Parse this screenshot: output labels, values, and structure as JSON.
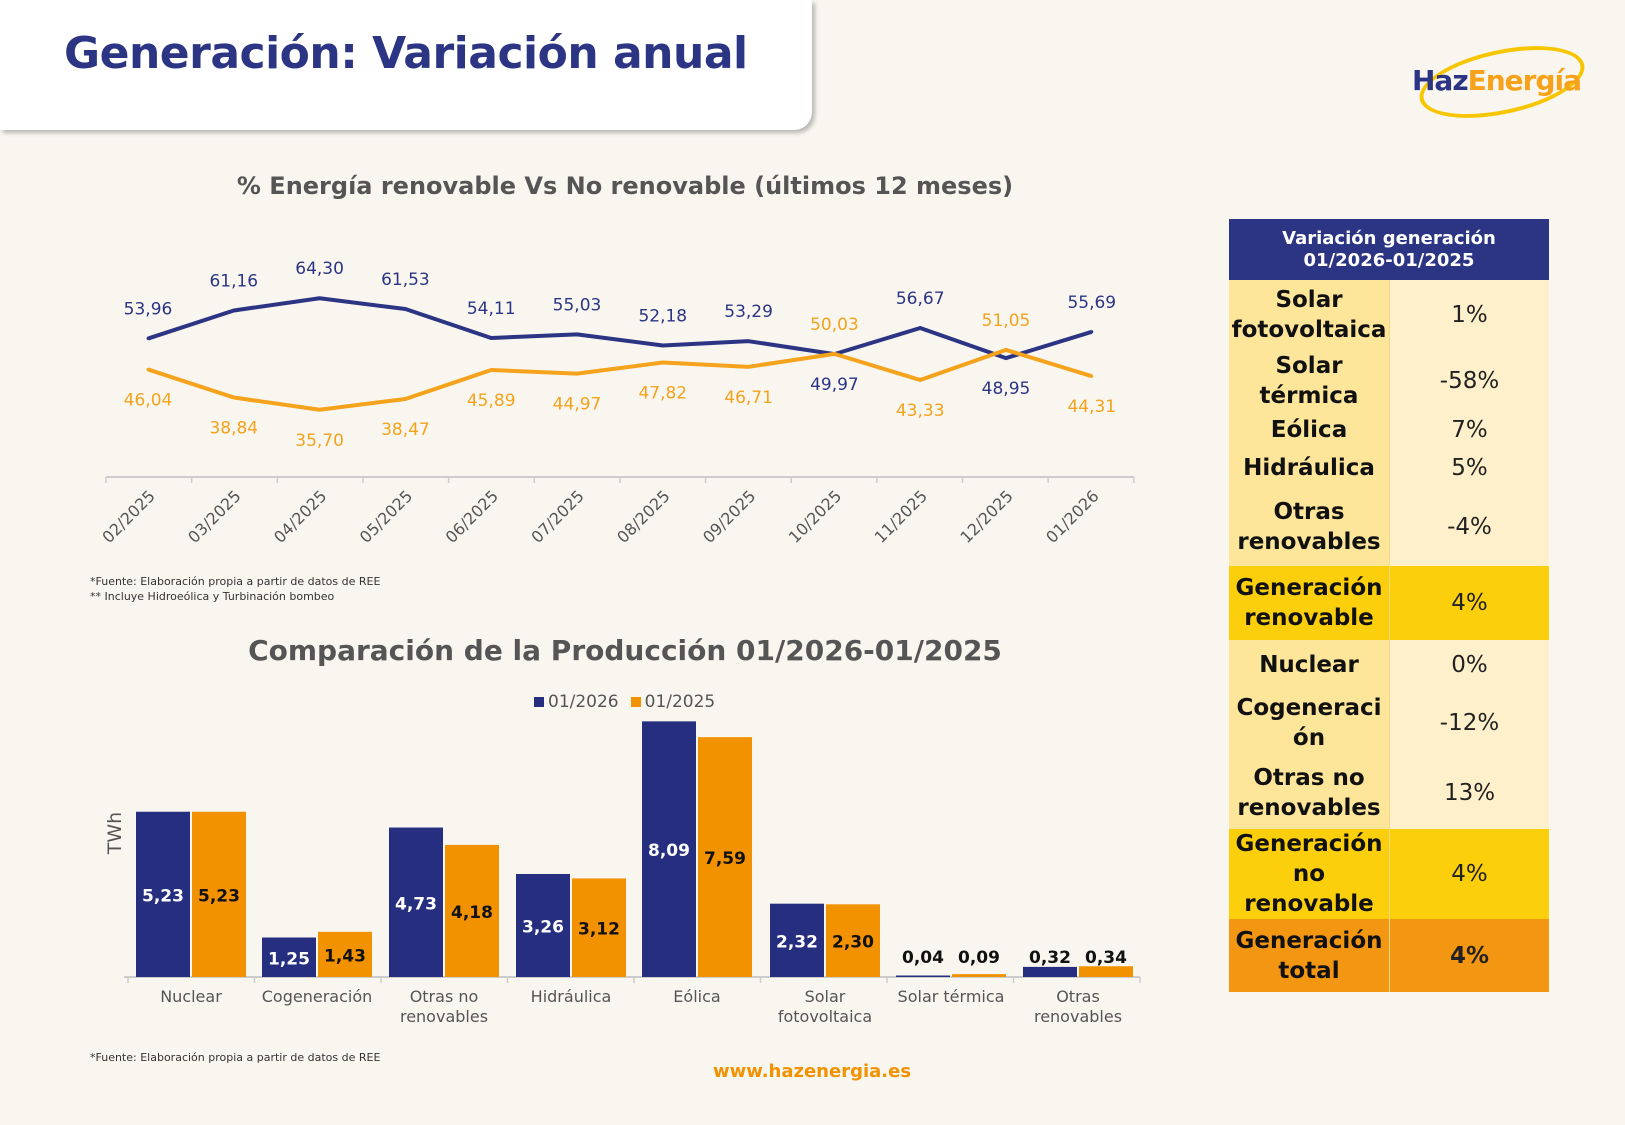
{
  "header": {
    "title": "Generación: Variación anual"
  },
  "logo": {
    "part1": "Haz",
    "part2": "Energía"
  },
  "line_section": {
    "footnote1": "*Fuente:  Elaboración propia a partir de datos de REE",
    "footnote2": "** Incluye Hidroeólica y Turbinación bombeo"
  },
  "bar_section": {
    "footnote": "*Fuente:  Elaboración propia a partir de datos de REE",
    "category_lines": [
      [
        "Nuclear"
      ],
      [
        "Cogeneración"
      ],
      [
        "Otras no",
        "renovables"
      ],
      [
        "Hidráulica"
      ],
      [
        "Eólica"
      ],
      [
        "Solar",
        "fotovoltaica"
      ],
      [
        "Solar térmica"
      ],
      [
        "Otras",
        "renovables"
      ]
    ]
  },
  "footer": {
    "url": "www.hazenergia.es"
  },
  "colors": {
    "navy": "#262e80",
    "orange": "#f39200",
    "line_orange": "#f5a21c"
  },
  "chart_data": [
    {
      "type": "line",
      "title": "%  Energía renovable Vs No renovable (últimos 12 meses)",
      "categories": [
        "02/2025",
        "03/2025",
        "04/2025",
        "05/2025",
        "06/2025",
        "07/2025",
        "08/2025",
        "09/2025",
        "10/2025",
        "11/2025",
        "12/2025",
        "01/2026"
      ],
      "series": [
        {
          "name": "Renovable",
          "color": "#2b3584",
          "values": [
            53.96,
            61.16,
            64.3,
            61.53,
            54.11,
            55.03,
            52.18,
            53.29,
            49.97,
            56.67,
            48.95,
            55.69
          ],
          "labels": [
            "53,96",
            "61,16",
            "64,30",
            "61,53",
            "54,11",
            "55,03",
            "52,18",
            "53,29",
            "49,97",
            "56,67",
            "48,95",
            "55,69"
          ]
        },
        {
          "name": "No renovable",
          "color": "#f5a21c",
          "values": [
            46.04,
            38.84,
            35.7,
            38.47,
            45.89,
            44.97,
            47.82,
            46.71,
            50.03,
            43.33,
            51.05,
            44.31
          ],
          "labels": [
            "46,04",
            "38,84",
            "35,70",
            "38,47",
            "45,89",
            "44,97",
            "47,82",
            "46,71",
            "50,03",
            "43,33",
            "51,05",
            "44,31"
          ]
        }
      ],
      "xlabel": "",
      "ylabel": "",
      "grid": false
    },
    {
      "type": "bar",
      "title": "Comparación de la Producción 01/2026-01/2025",
      "categories": [
        "Nuclear",
        "Cogeneración",
        "Otras no renovables",
        "Hidráulica",
        "Eólica",
        "Solar fotovoltaica",
        "Solar térmica",
        "Otras renovables"
      ],
      "series": [
        {
          "name": "01/2026",
          "color": "#262e80",
          "values": [
            5.23,
            1.25,
            4.73,
            3.26,
            8.09,
            2.32,
            0.04,
            0.32
          ],
          "labels": [
            "5,23",
            "1,25",
            "4,73",
            "3,26",
            "8,09",
            "2,32",
            "0,04",
            "0,32"
          ]
        },
        {
          "name": "01/2025",
          "color": "#f39200",
          "values": [
            5.23,
            1.43,
            4.18,
            3.12,
            7.59,
            2.3,
            0.09,
            0.34
          ],
          "labels": [
            "5,23",
            "1,43",
            "4,18",
            "3,12",
            "7,59",
            "2,30",
            "0,09",
            "0,34"
          ]
        }
      ],
      "ylabel": "TWh",
      "legend": "top",
      "ylim": [
        0,
        8.09
      ]
    }
  ],
  "table": {
    "header_line1": "Variación generación",
    "header_line2": "01/2026-01/2025",
    "rows": [
      {
        "label": "Solar fotovoltaica",
        "value": "1%",
        "kind": "item"
      },
      {
        "label": "Solar térmica",
        "value": "-58%",
        "kind": "item"
      },
      {
        "label": "Eólica",
        "value": "7%",
        "kind": "item"
      },
      {
        "label": "Hidráulica",
        "value": "5%",
        "kind": "item"
      },
      {
        "label": "Otras renovables",
        "value": "-4%",
        "kind": "item"
      },
      {
        "label": "Generación renovable",
        "value": "4%",
        "kind": "sub"
      },
      {
        "label": "Nuclear",
        "value": "0%",
        "kind": "item"
      },
      {
        "label": "Cogeneración",
        "value": "-12%",
        "kind": "item"
      },
      {
        "label": "Otras no renovables",
        "value": "13%",
        "kind": "item"
      },
      {
        "label": "Generación no renovable",
        "value": "4%",
        "kind": "sub"
      },
      {
        "label": "Generación total",
        "value": "4%",
        "kind": "tot"
      }
    ]
  }
}
